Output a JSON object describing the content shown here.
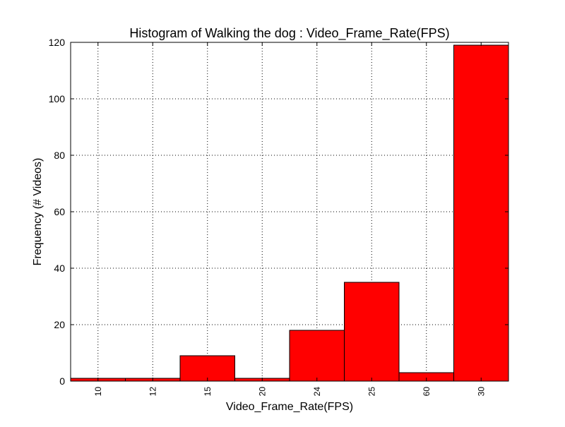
{
  "chart_data": {
    "type": "bar",
    "title": "Histogram of Walking the dog : Video_Frame_Rate(FPS)",
    "xlabel": "Video_Frame_Rate(FPS)",
    "ylabel": "Frequency (# Videos)",
    "categories": [
      "10",
      "12",
      "15",
      "20",
      "24",
      "25",
      "60",
      "30"
    ],
    "values": [
      1,
      1,
      9,
      1,
      18,
      35,
      3,
      119
    ],
    "ylim": [
      0,
      120
    ],
    "yticks": [
      0,
      20,
      40,
      60,
      80,
      100,
      120
    ],
    "grid": true,
    "bar_color": "#ff0000",
    "edge_color": "#000000"
  }
}
